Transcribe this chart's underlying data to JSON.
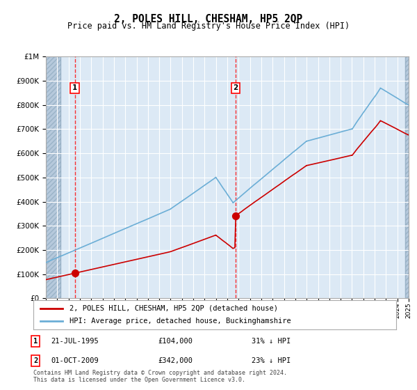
{
  "title": "2, POLES HILL, CHESHAM, HP5 2QP",
  "subtitle": "Price paid vs. HM Land Registry's House Price Index (HPI)",
  "hpi_label": "HPI: Average price, detached house, Buckinghamshire",
  "property_label": "2, POLES HILL, CHESHAM, HP5 2QP (detached house)",
  "hpi_color": "#6baed6",
  "property_color": "#cc0000",
  "sale1_date_num": 1995.55,
  "sale1_price": 104000,
  "sale1_label": "21-JUL-1995",
  "sale1_pct": "31% ↓ HPI",
  "sale2_date_num": 2009.75,
  "sale2_price": 342000,
  "sale2_label": "01-OCT-2009",
  "sale2_pct": "23% ↓ HPI",
  "bg_color": "#dce9f5",
  "hatch_color": "#b0c4d8",
  "grid_color": "#ffffff",
  "ymax": 1000000,
  "xmin": 1993,
  "xmax": 2025,
  "footer": "Contains HM Land Registry data © Crown copyright and database right 2024.\nThis data is licensed under the Open Government Licence v3.0."
}
